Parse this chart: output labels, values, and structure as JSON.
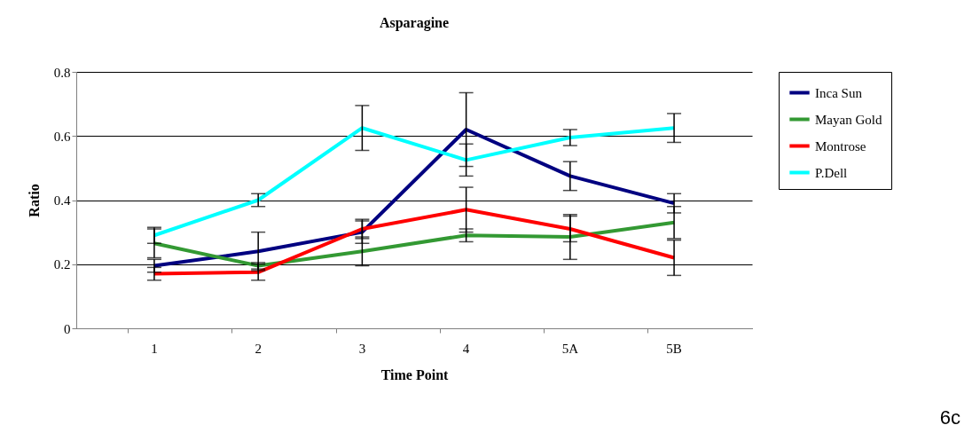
{
  "chart_data": {
    "type": "line",
    "title": "Asparagine",
    "xlabel": "Time Point",
    "ylabel": "Ratio",
    "categories": [
      "1",
      "2",
      "3",
      "4",
      "5A",
      "5B"
    ],
    "ylim": [
      0,
      0.8
    ],
    "yticks": [
      0,
      0.2,
      0.4,
      0.6,
      0.8
    ],
    "grid": "y",
    "legend": "right",
    "marker": "none",
    "annotations": [
      "6c"
    ],
    "series": [
      {
        "name": "Inca Sun",
        "color": "#000080",
        "values": [
          0.195,
          0.24,
          0.3,
          0.62,
          0.475,
          0.39
        ],
        "errors": [
          0.02,
          0.06,
          0.035,
          0.115,
          0.045,
          0.03
        ]
      },
      {
        "name": "Mayan Gold",
        "color": "#339933",
        "values": [
          0.265,
          0.195,
          0.24,
          0.29,
          0.285,
          0.33
        ],
        "errors": [
          0.045,
          0.01,
          0.045,
          0.02,
          0.07,
          0.05
        ]
      },
      {
        "name": "Montrose",
        "color": "#ff0000",
        "values": [
          0.17,
          0.175,
          0.31,
          0.37,
          0.31,
          0.22
        ],
        "errors": [
          0.02,
          0.025,
          0.03,
          0.07,
          0.04,
          0.055
        ]
      },
      {
        "name": "P.Dell",
        "color": "#00ffff",
        "values": [
          0.29,
          0.4,
          0.625,
          0.525,
          0.595,
          0.625
        ],
        "errors": [
          0.025,
          0.02,
          0.07,
          0.05,
          0.025,
          0.045
        ]
      }
    ]
  }
}
